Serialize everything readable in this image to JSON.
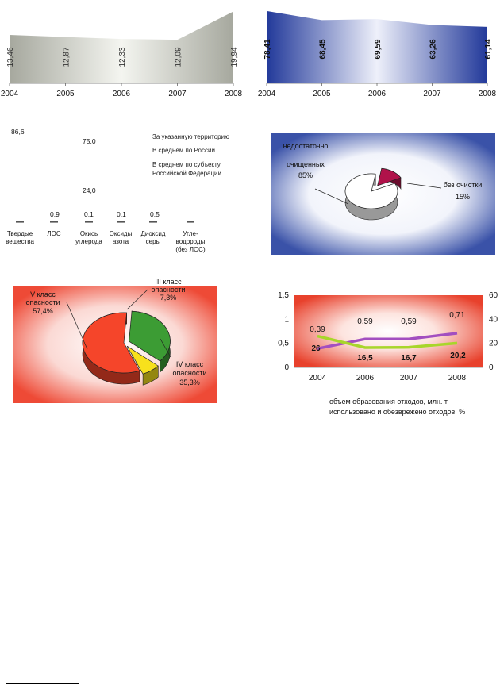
{
  "colors": {
    "gray_area": "#a6a89e",
    "blue_area": "#22399a",
    "cleaned_pie": "#b0124a",
    "hazard_v": "#f5452a",
    "hazard_iv": "#3c9c34",
    "hazard_iii": "#f7e11c",
    "line_purple": "#a24fc0",
    "line_green": "#a8d62b",
    "red_bg": "#e8412c"
  },
  "chart_data": [
    {
      "type": "area",
      "categories": [
        "2004",
        "2005",
        "2006",
        "2007",
        "2008"
      ],
      "values": [
        13.46,
        12.87,
        12.33,
        12.09,
        19.94
      ],
      "value_labels": [
        "13,46",
        "12,87",
        "12,33",
        "12,09",
        "19,94"
      ]
    },
    {
      "type": "area",
      "categories": [
        "2004",
        "2005",
        "2006",
        "2007",
        "2008"
      ],
      "values": [
        78.41,
        68.45,
        69.59,
        63.26,
        61.14
      ],
      "value_labels": [
        "78,41",
        "68,45",
        "69,59",
        "63,26",
        "61,14"
      ]
    },
    {
      "type": "bar",
      "categories": [
        "Твердые вещества",
        "ЛОС",
        "Окись углерода",
        "Оксиды азота",
        "Диоксид серы",
        "Угле-водороды (без ЛОС)"
      ],
      "category_lines": [
        [
          "Твердые",
          "вещества"
        ],
        [
          "ЛОС"
        ],
        [
          "Окись",
          "углерода"
        ],
        [
          "Оксиды",
          "азота"
        ],
        [
          "Диоксид",
          "серы"
        ],
        [
          "Угле-",
          "водороды",
          "(без ЛОС)"
        ]
      ],
      "labels": [
        "86,6",
        "75,0",
        "24,0",
        "0,9",
        "0,1",
        "0,1",
        "0,5"
      ],
      "legend": [
        "За указанную территорию",
        "В среднем по России",
        "В среднем по субъекту",
        "Российской Федерации"
      ]
    },
    {
      "type": "pie",
      "slices": [
        {
          "name": "недостаточно очищенных",
          "value": 85,
          "label": "85%",
          "lines": [
            "недостаточно",
            "очищенных",
            "85%"
          ]
        },
        {
          "name": "без очистки",
          "value": 15,
          "label": "15%",
          "lines": [
            "без очистки",
            "15%"
          ]
        }
      ]
    },
    {
      "type": "pie",
      "slices": [
        {
          "name": "V класс опасности",
          "value": 57.4,
          "label": "57,4%",
          "lines": [
            "V класс",
            "опасности",
            "57,4%"
          ]
        },
        {
          "name": "IV класс опасности",
          "value": 35.3,
          "label": "35,3%",
          "lines": [
            "IV класс",
            "опасности",
            "35,3%"
          ]
        },
        {
          "name": "III класс опасности",
          "value": 7.3,
          "label": "7,3%",
          "lines": [
            "III класс",
            "опасности",
            "7,3%"
          ]
        }
      ]
    },
    {
      "type": "line",
      "x": [
        "2004",
        "2006",
        "2007",
        "2008"
      ],
      "y_left_ticks": [
        "0",
        "0,5",
        "1",
        "1,5"
      ],
      "y_right_ticks": [
        "0",
        "20",
        "40",
        "60"
      ],
      "ylim_left": [
        0,
        1.5
      ],
      "ylim_right": [
        0,
        60
      ],
      "series": [
        {
          "name": "объем образования отходов, млн. т",
          "axis": "left",
          "values": [
            0.39,
            0.59,
            0.59,
            0.71
          ],
          "labels": [
            "0,39",
            "0,59",
            "0,59",
            "0,71"
          ]
        },
        {
          "name": "использовано и обезврежено отходов, %",
          "axis": "right",
          "values": [
            26,
            16.5,
            16.7,
            20.2
          ],
          "labels": [
            "26",
            "16,5",
            "16,7",
            "20,2"
          ]
        }
      ],
      "legend": [
        "объем образования отходов, млн. т",
        "использовано и обезврежено отходов, %"
      ]
    }
  ]
}
